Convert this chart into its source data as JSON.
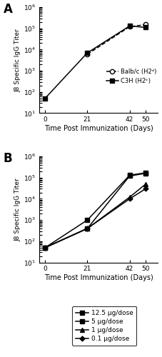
{
  "time_points": [
    0,
    21,
    42,
    50
  ],
  "panel_A": {
    "balbc": [
      null,
      6000,
      120000,
      150000
    ],
    "c3h": [
      50,
      7000,
      130000,
      110000
    ],
    "balbc_label": "Balb/c (H2ᵈ)",
    "c3h_label": "C3H (H2ᵏ)"
  },
  "panel_B": {
    "dose_125": [
      50,
      1000,
      130000,
      170000
    ],
    "dose_5": [
      50,
      400,
      120000,
      160000
    ],
    "dose_1": [
      50,
      400,
      12000,
      50000
    ],
    "dose_01": [
      50,
      400,
      10000,
      30000
    ],
    "label_125": "12.5 μg/dose",
    "label_5": "5 μg/dose",
    "label_1": "1 μg/dose",
    "label_01": "0.1 μg/dose"
  },
  "ylabel": "J8 Specific IgG Titer",
  "xlabel": "Time Post Immunization (Days)",
  "ylim_A": [
    10,
    1000000
  ],
  "ylim_B": [
    10,
    1000000
  ],
  "background_color": "#ffffff",
  "line_color": "#000000",
  "panel_A_label": "A",
  "panel_B_label": "B"
}
